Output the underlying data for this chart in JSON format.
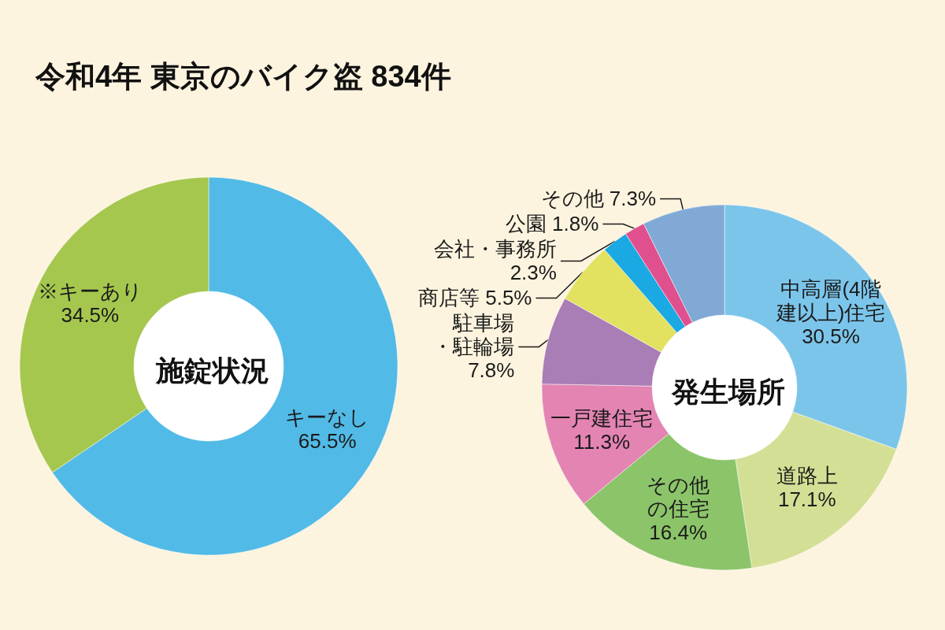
{
  "chart_data": [
    {
      "type": "donut",
      "title": "令和4年 東京のバイク盗 834件",
      "subtitle": "施錠状況",
      "categories": [
        "キーなし",
        "※キーあり"
      ],
      "values": [
        65.5,
        34.5
      ],
      "colors": [
        "#52bae6",
        "#a5c74e"
      ],
      "value_labels": [
        "65.5%",
        "34.5%"
      ]
    },
    {
      "type": "donut",
      "subtitle": "発生場所",
      "categories": [
        "中高層(4階建以上)住宅",
        "道路上",
        "その他の住宅",
        "一戸建住宅",
        "駐車場・駐輪場",
        "商店等",
        "会社・事務所",
        "公園",
        "その他"
      ],
      "values": [
        30.5,
        17.1,
        16.4,
        11.3,
        7.8,
        5.5,
        2.3,
        1.8,
        7.3
      ],
      "colors": [
        "#7cc5ea",
        "#d3df94",
        "#8cc46a",
        "#e384b3",
        "#a97db6",
        "#e2e160",
        "#1aa9e2",
        "#e0508e",
        "#80a9d6"
      ],
      "value_labels": [
        "30.5%",
        "17.1%",
        "16.4%",
        "11.3%",
        "7.8%",
        "5.5%",
        "2.3%",
        "1.8%",
        "7.3%"
      ]
    }
  ]
}
